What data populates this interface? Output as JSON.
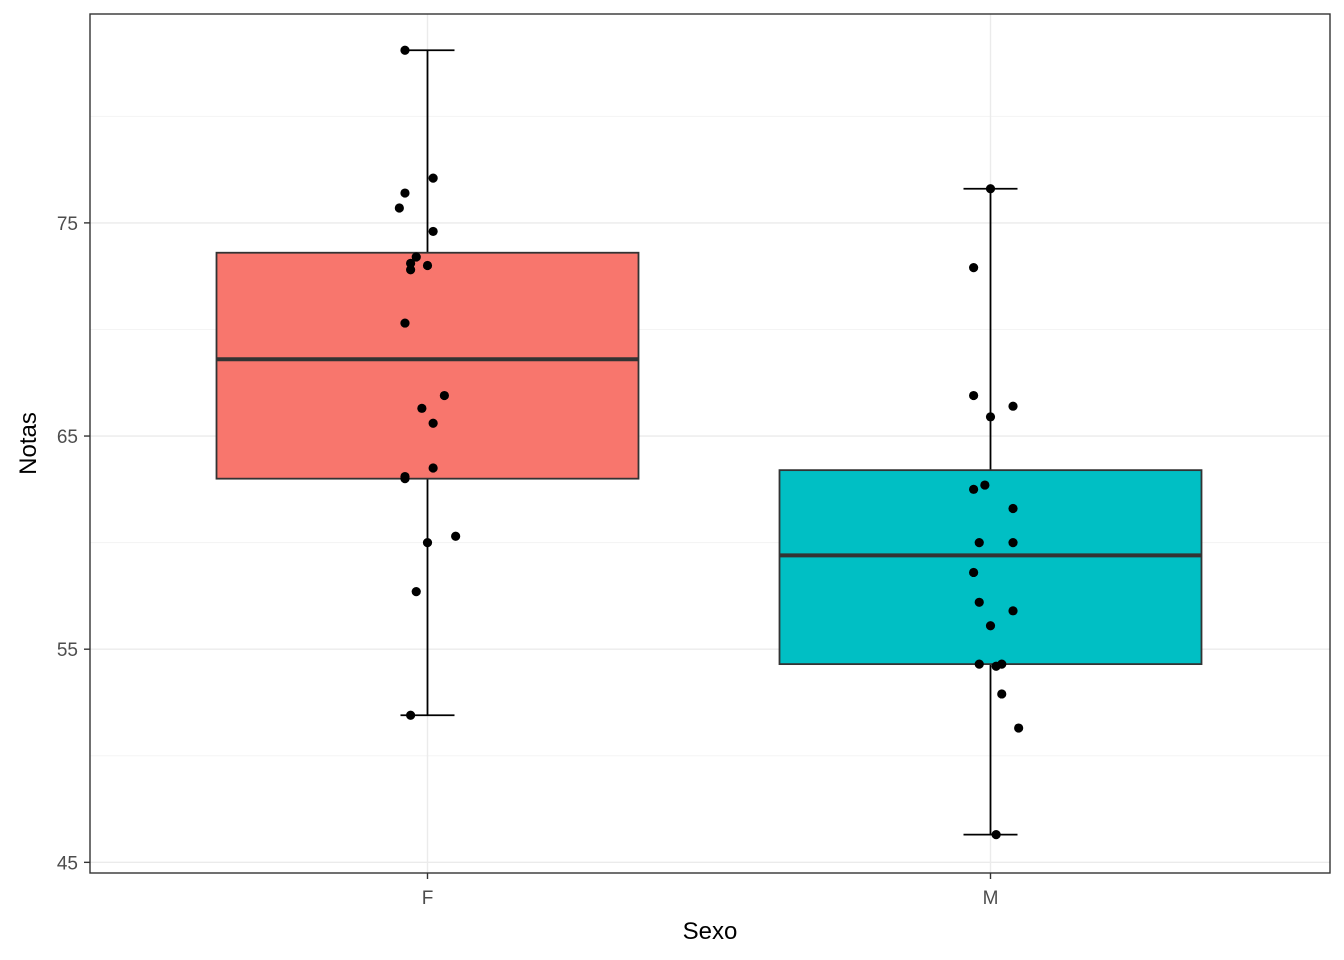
{
  "chart_data": {
    "type": "boxplot",
    "xlabel": "Sexo",
    "ylabel": "Notas",
    "categories": [
      "F",
      "M"
    ],
    "yticks": [
      45,
      55,
      65,
      75
    ],
    "ylim": [
      44.5,
      84.8
    ],
    "grid": true,
    "theme": "bw",
    "boxes": [
      {
        "category": "F",
        "fill": "#F8766D",
        "whisker_low": 51.9,
        "q1": 63.0,
        "median": 68.6,
        "q3": 73.6,
        "whisker_high": 83.1,
        "points": [
          {
            "x": 0.96,
            "y": 83.1
          },
          {
            "x": 1.01,
            "y": 77.1
          },
          {
            "x": 0.96,
            "y": 76.4
          },
          {
            "x": 0.95,
            "y": 75.7
          },
          {
            "x": 1.01,
            "y": 74.6
          },
          {
            "x": 0.98,
            "y": 73.4
          },
          {
            "x": 0.97,
            "y": 73.1
          },
          {
            "x": 1.0,
            "y": 73.0
          },
          {
            "x": 0.97,
            "y": 72.8
          },
          {
            "x": 0.96,
            "y": 70.3
          },
          {
            "x": 1.03,
            "y": 66.9
          },
          {
            "x": 0.99,
            "y": 66.3
          },
          {
            "x": 1.01,
            "y": 65.6
          },
          {
            "x": 1.01,
            "y": 63.5
          },
          {
            "x": 0.96,
            "y": 63.1
          },
          {
            "x": 0.96,
            "y": 63.0
          },
          {
            "x": 1.05,
            "y": 60.3
          },
          {
            "x": 1.0,
            "y": 60.0
          },
          {
            "x": 0.98,
            "y": 57.7
          },
          {
            "x": 0.97,
            "y": 51.9
          }
        ]
      },
      {
        "category": "M",
        "fill": "#00BFC4",
        "whisker_low": 46.3,
        "q1": 54.3,
        "median": 59.4,
        "q3": 63.4,
        "whisker_high": 76.6,
        "points": [
          {
            "x": 2.0,
            "y": 76.6
          },
          {
            "x": 1.97,
            "y": 72.9
          },
          {
            "x": 1.97,
            "y": 66.9
          },
          {
            "x": 2.04,
            "y": 66.4
          },
          {
            "x": 2.0,
            "y": 65.9
          },
          {
            "x": 1.97,
            "y": 62.5
          },
          {
            "x": 1.99,
            "y": 62.7
          },
          {
            "x": 2.04,
            "y": 61.6
          },
          {
            "x": 1.98,
            "y": 60.0
          },
          {
            "x": 2.04,
            "y": 60.0
          },
          {
            "x": 1.97,
            "y": 58.6
          },
          {
            "x": 1.98,
            "y": 57.2
          },
          {
            "x": 2.04,
            "y": 56.8
          },
          {
            "x": 2.0,
            "y": 56.1
          },
          {
            "x": 1.98,
            "y": 54.3
          },
          {
            "x": 2.02,
            "y": 54.3
          },
          {
            "x": 2.01,
            "y": 54.2
          },
          {
            "x": 2.02,
            "y": 52.9
          },
          {
            "x": 2.05,
            "y": 51.3
          },
          {
            "x": 2.01,
            "y": 46.3
          }
        ]
      }
    ]
  }
}
